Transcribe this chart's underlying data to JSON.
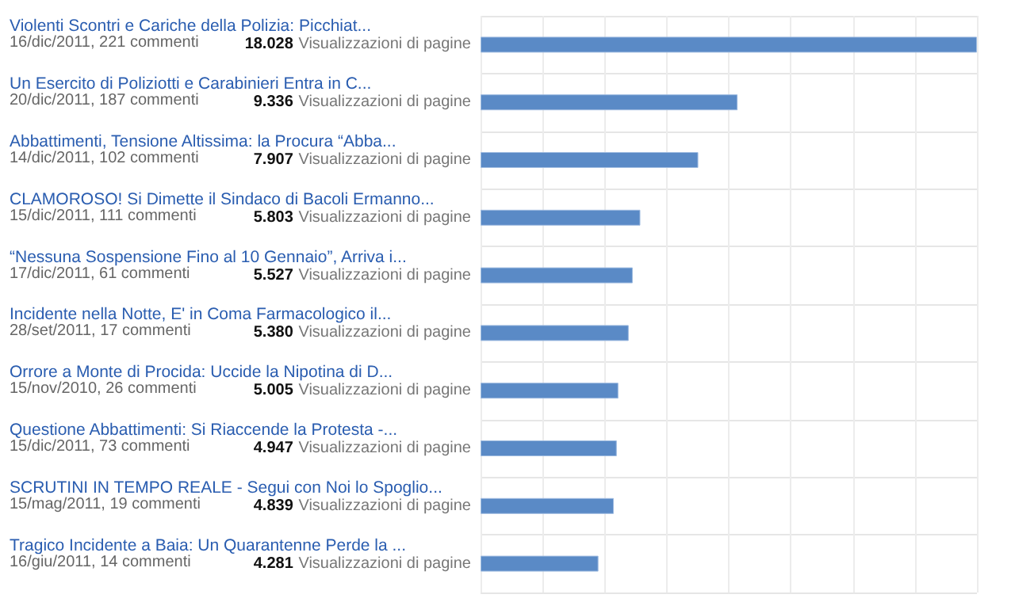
{
  "chart_data": {
    "type": "bar",
    "orientation": "horizontal",
    "grid": true,
    "tick_labels": "y",
    "color": "#5a8ac6",
    "categories": [
      "Violenti Scontri e Cariche della Polizia: Picchiat...",
      "Un Esercito di Poliziotti e Carabinieri Entra in C...",
      "Abbattimenti, Tensione Altissima: la Procura “Abba...",
      "CLAMOROSO! Si Dimette il Sindaco di Bacoli Ermanno...",
      "“Nessuna Sospensione Fino al 10 Gennaio”, Arriva i...",
      "Incidente nella Notte, E' in Coma Farmacologico il...",
      "Orrore a Monte di Procida: Uccide la Nipotina di D...",
      "Questione Abbattimenti: Si Riaccende la Protesta -...",
      "SCRUTINI IN TEMPO REALE - Segui con Noi lo Spoglio...",
      "Tragico Incidente a Baia: Un Quarantenne Perde la ..."
    ],
    "values": [
      18028,
      9336,
      7907,
      5803,
      5527,
      5380,
      5005,
      4947,
      4839,
      4281
    ],
    "value_labels": [
      "18.028",
      "9.336",
      "7.907",
      "5.803",
      "5.527",
      "5.380",
      "5.005",
      "4.947",
      "4.839",
      "4.281"
    ],
    "annotations": [
      "16/dic/2011, 221 commenti",
      "20/dic/2011, 187 commenti",
      "14/dic/2011, 102 commenti",
      "15/dic/2011, 111 commenti",
      "17/dic/2011, 61 commenti",
      "28/set/2011, 17 commenti",
      "15/nov/2010, 26 commenti",
      "15/dic/2011, 73 commenti",
      "15/mag/2011, 19 commenti",
      "16/giu/2011, 14 commenti",
      "Visualizzazioni di pagine",
      "Visualizzazioni di pagine",
      "Visualizzazioni di pagine",
      "Visualizzazioni di pagine",
      "Visualizzazioni di pagine",
      "Visualizzazioni di pagine",
      "Visualizzazioni di pagine",
      "Visualizzazioni di pagine",
      "Visualizzazioni di pagine",
      "Visualizzazioni di pagine"
    ]
  }
}
